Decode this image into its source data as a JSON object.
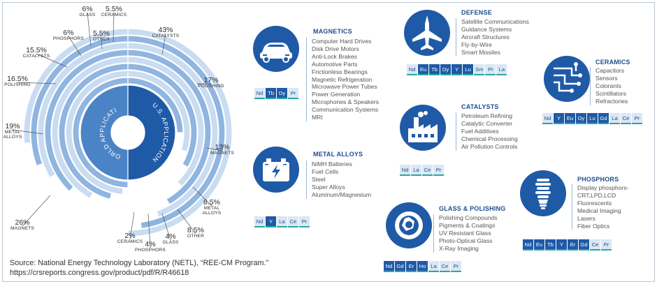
{
  "wheel": {
    "center_labels": {
      "world": "WORLD APPLICATION",
      "us": "U.S. APPLICATION"
    },
    "labels": [
      {
        "pct": "43%",
        "cat": "CATALYSTS"
      },
      {
        "pct": "17%",
        "cat": "POLISHING"
      },
      {
        "pct": "13%",
        "cat": "MAGNETS"
      },
      {
        "pct": "8.5%",
        "cat": "METAL ALLOYS"
      },
      {
        "pct": "8.5%",
        "cat": "OTHER"
      },
      {
        "pct": "4%",
        "cat": "GLASS"
      },
      {
        "pct": "4%",
        "cat": "PHOSPHORS"
      },
      {
        "pct": "2%",
        "cat": "CERAMICS"
      },
      {
        "pct": "26%",
        "cat": "MAGNETS"
      },
      {
        "pct": "19%",
        "cat": "METAL ALLOYS"
      },
      {
        "pct": "16.5%",
        "cat": "POLISHING"
      },
      {
        "pct": "15.5%",
        "cat": "CATALYSTS"
      },
      {
        "pct": "6%",
        "cat": "PHOSPHORS"
      },
      {
        "pct": "6%",
        "cat": "GLASS"
      },
      {
        "pct": "5.5%",
        "cat": "OTHER"
      },
      {
        "pct": "5.5%",
        "cat": "CERAMICS"
      }
    ],
    "colors": {
      "dark": "#1f5aa6",
      "mid": "#4a84c6",
      "light": "#8fb5e0",
      "pale": "#c9dcf1"
    }
  },
  "source": {
    "line1": "Source: National Energy Technology Laboratory (NETL), “REE-CM Program.”",
    "line2": "https://crsreports.congress.gov/product/pdf/R/R46618"
  },
  "sections": [
    {
      "title": "MAGNETICS",
      "icon": "car-icon",
      "items": [
        "Computer Hard Drives",
        "Disk Drive Motors",
        "Anti-Lock Brakes",
        "Automotive Parts",
        "Frictionless Bearings",
        "Magnetic Refrigeration",
        "Microwave Power Tubes",
        "Power Generation",
        "Microphones & Speakers",
        "Communication Systems",
        "MRI"
      ],
      "elements": [
        "Nd",
        "Tb",
        "Dy",
        "Pr"
      ]
    },
    {
      "title": "METAL ALLOYS",
      "icon": "battery-icon",
      "items": [
        "NiMH Batteries",
        "Fuel Cells",
        "Steel",
        "Super Alloys",
        "Aluminum/Magnesium"
      ],
      "elements": [
        "Nd",
        "Y",
        "La",
        "Ce",
        "Pr"
      ]
    },
    {
      "title": "DEFENSE",
      "icon": "jet-icon",
      "items": [
        "Satellite Communications",
        "Guidance Systems",
        "Aircraft Structures",
        "Fly-by-Wire",
        "Smart Missiles"
      ],
      "elements": [
        "Nd",
        "Eu",
        "Tb",
        "Dy",
        "Y",
        "Lu",
        "Sm",
        "Pr",
        "La"
      ]
    },
    {
      "title": "CATALYSTS",
      "icon": "factory-icon",
      "items": [
        "Petroleum Refining",
        "Catalytic Converter",
        "Fuel Additives",
        "Chemical Processing",
        "Air Pollution Controls"
      ],
      "elements": [
        "Nd",
        "La",
        "Ce",
        "Pr"
      ]
    },
    {
      "title": "GLASS & POLISHING",
      "icon": "camera-lens-icon",
      "items": [
        "Polishing Compounds",
        "Pigments & Coatings",
        "UV Resistant Glass",
        "Photo-Optical Glass",
        "X-Ray Imaging"
      ],
      "elements": [
        "Nd",
        "Gd",
        "Er",
        "Ho",
        "La",
        "Ce",
        "Pr"
      ]
    },
    {
      "title": "CERAMICS",
      "icon": "circuit-icon",
      "items": [
        "Capacitors",
        "Sensors",
        "Colorants",
        "Scintillators",
        "Refractories"
      ],
      "elements": [
        "Nd",
        "Y",
        "Eu",
        "Dy",
        "Lu",
        "Gd",
        "La",
        "Ce",
        "Pr"
      ]
    },
    {
      "title": "PHOSPHORS",
      "icon": "lightbulb-icon",
      "items": [
        "Display phosphors-",
        " CRT,LPD,LCD",
        "Fluorescents",
        "Medical Imaging",
        "Lasers",
        "Fiber Optics"
      ],
      "elements": [
        "Nd",
        "Eu",
        "Tb",
        "Y",
        "Er",
        "Gd",
        "Ce",
        "Pr"
      ]
    }
  ]
}
